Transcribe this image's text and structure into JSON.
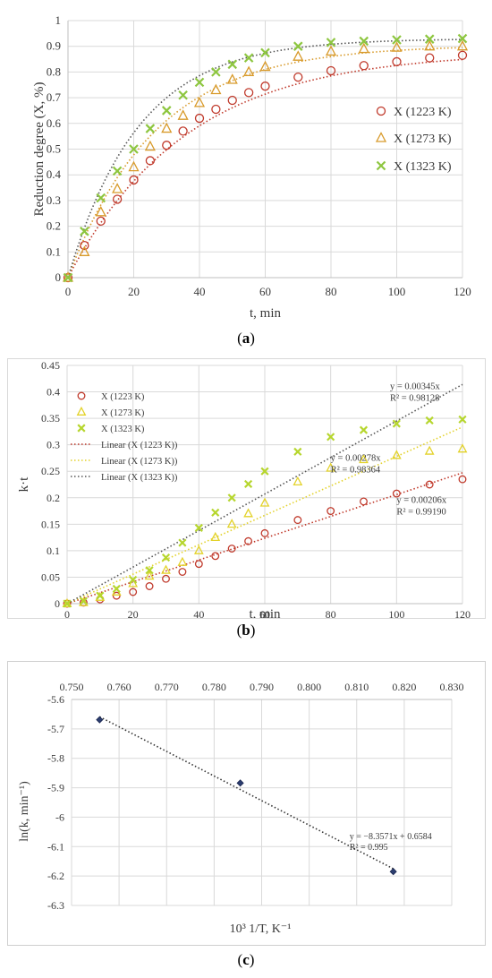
{
  "chart_data": [
    {
      "type": "scatter",
      "panel": "a",
      "title": "",
      "xlabel": "t, min",
      "ylabel": "Reduction degree (X, %)",
      "xlim": [
        0,
        120
      ],
      "ylim": [
        0,
        1
      ],
      "x_ticks": [
        0,
        20,
        40,
        60,
        80,
        100,
        120
      ],
      "y_ticks": [
        0,
        0.1,
        0.2,
        0.3,
        0.4,
        0.5,
        0.6,
        0.7,
        0.8,
        0.9,
        1
      ],
      "x_tick_labels": [
        "0",
        "20",
        "40",
        "60",
        "80",
        "100",
        "120"
      ],
      "y_tick_labels": [
        "0",
        "0.1",
        "0.2",
        "0.3",
        "0.4",
        "0.5",
        "0.6",
        "0.7",
        "0.8",
        "0.9",
        "1"
      ],
      "grid": true,
      "legend_position": "right",
      "series": [
        {
          "name": "X (1223 K)",
          "marker": "circle",
          "color": "#c0392b",
          "x": [
            0,
            5,
            10,
            15,
            20,
            25,
            30,
            35,
            40,
            45,
            50,
            55,
            60,
            70,
            80,
            90,
            100,
            110,
            120
          ],
          "y": [
            0,
            0.125,
            0.22,
            0.305,
            0.38,
            0.455,
            0.515,
            0.57,
            0.62,
            0.655,
            0.69,
            0.72,
            0.745,
            0.78,
            0.805,
            0.825,
            0.84,
            0.855,
            0.865
          ]
        },
        {
          "name": "X (1273 K)",
          "marker": "triangle",
          "color": "#d89a2a",
          "x": [
            0,
            5,
            10,
            15,
            20,
            25,
            30,
            35,
            40,
            45,
            50,
            55,
            60,
            70,
            80,
            90,
            100,
            110,
            120
          ],
          "y": [
            0,
            0.1,
            0.255,
            0.345,
            0.43,
            0.51,
            0.58,
            0.63,
            0.68,
            0.73,
            0.77,
            0.8,
            0.82,
            0.86,
            0.88,
            0.89,
            0.895,
            0.9,
            0.9
          ]
        },
        {
          "name": "X (1323 K)",
          "marker": "x",
          "color": "#8dc63f",
          "x": [
            0,
            5,
            10,
            15,
            20,
            25,
            30,
            35,
            40,
            45,
            50,
            55,
            60,
            70,
            80,
            90,
            100,
            110,
            120
          ],
          "y": [
            0,
            0.18,
            0.31,
            0.415,
            0.5,
            0.58,
            0.65,
            0.71,
            0.76,
            0.8,
            0.83,
            0.855,
            0.875,
            0.9,
            0.915,
            0.92,
            0.925,
            0.928,
            0.93
          ]
        }
      ],
      "fit_curves": [
        {
          "color": "#c0392b",
          "k": 0.0206,
          "xmax": 0.88
        },
        {
          "color": "#d89a2a",
          "k": 0.0278,
          "xmax": 0.905
        },
        {
          "color": "#555555",
          "k": 0.0345,
          "xmax": 0.93
        }
      ],
      "caption": "a"
    },
    {
      "type": "scatter",
      "panel": "b",
      "title": "",
      "xlabel": "t, min",
      "ylabel": "k·t",
      "xlim": [
        0,
        120
      ],
      "ylim": [
        0,
        0.45
      ],
      "x_ticks": [
        0,
        20,
        40,
        60,
        80,
        100,
        120
      ],
      "y_ticks": [
        0,
        0.05,
        0.1,
        0.15,
        0.2,
        0.25,
        0.3,
        0.35,
        0.4,
        0.45
      ],
      "x_tick_labels": [
        "0",
        "20",
        "40",
        "60",
        "80",
        "100",
        "120"
      ],
      "y_tick_labels": [
        "0",
        "0.05",
        "0.1",
        "0.15",
        "0.2",
        "0.25",
        "0.3",
        "0.35",
        "0.4",
        "0.45"
      ],
      "grid": true,
      "legend_position": "top-left",
      "series": [
        {
          "name": "X (1223 K)",
          "marker": "circle",
          "color": "#c0392b",
          "x": [
            0,
            5,
            10,
            15,
            20,
            25,
            30,
            35,
            40,
            45,
            50,
            55,
            60,
            70,
            80,
            90,
            100,
            110,
            120
          ],
          "y": [
            0,
            0.002,
            0.008,
            0.015,
            0.022,
            0.033,
            0.047,
            0.06,
            0.075,
            0.09,
            0.104,
            0.118,
            0.133,
            0.158,
            0.175,
            0.193,
            0.208,
            0.225,
            0.235
          ]
        },
        {
          "name": "X (1273 K)",
          "marker": "triangle",
          "color": "#e3d22a",
          "x": [
            0,
            5,
            10,
            15,
            20,
            25,
            30,
            35,
            40,
            45,
            50,
            55,
            60,
            70,
            80,
            90,
            100,
            110,
            120
          ],
          "y": [
            0,
            0.002,
            0.012,
            0.022,
            0.038,
            0.052,
            0.063,
            0.078,
            0.1,
            0.125,
            0.15,
            0.17,
            0.19,
            0.23,
            0.256,
            0.272,
            0.28,
            0.288,
            0.292
          ]
        },
        {
          "name": "X (1323 K)",
          "marker": "x",
          "color": "#b6d62e",
          "x": [
            0,
            5,
            10,
            15,
            20,
            25,
            30,
            35,
            40,
            45,
            50,
            55,
            60,
            70,
            80,
            90,
            100,
            110,
            120
          ],
          "y": [
            0,
            0.005,
            0.015,
            0.028,
            0.045,
            0.063,
            0.087,
            0.115,
            0.143,
            0.172,
            0.2,
            0.226,
            0.25,
            0.287,
            0.315,
            0.328,
            0.34,
            0.346,
            0.348
          ]
        },
        {
          "name": "Linear (X (1223 K))",
          "type": "line",
          "style": "dotted",
          "color": "#c0392b",
          "slope": 0.00206
        },
        {
          "name": "Linear (X (1273 K))",
          "type": "line",
          "style": "dotted",
          "color": "#e3d22a",
          "slope": 0.00278
        },
        {
          "name": "Linear (X (1323 K))",
          "type": "line",
          "style": "dotted",
          "color": "#555555",
          "slope": 0.00345
        }
      ],
      "annotations": [
        {
          "line1": "y = 0.00345x",
          "line2": "R² = 0.98128",
          "x": 98,
          "y": 0.405
        },
        {
          "line1": "y = 0.00278x",
          "line2": "R² = 0.98364",
          "x": 80,
          "y": 0.27
        },
        {
          "line1": "y = 0.00206x",
          "line2": "R² = 0.99190",
          "x": 100,
          "y": 0.19
        }
      ],
      "caption": "b"
    },
    {
      "type": "scatter",
      "panel": "c",
      "title": "",
      "xlabel": "10³ 1/T, K⁻¹",
      "ylabel": "ln(k, min⁻¹)",
      "xlim": [
        0.75,
        0.83
      ],
      "ylim": [
        -6.3,
        -5.6
      ],
      "x_ticks": [
        0.75,
        0.76,
        0.77,
        0.78,
        0.79,
        0.8,
        0.81,
        0.82,
        0.83
      ],
      "y_ticks": [
        -5.6,
        -5.7,
        -5.8,
        -5.9,
        -6,
        -6.1,
        -6.2,
        -6.3
      ],
      "x_tick_labels": [
        "0.750",
        "0.760",
        "0.770",
        "0.780",
        "0.790",
        "0.800",
        "0.810",
        "0.820",
        "0.830"
      ],
      "y_tick_labels": [
        "-5.6",
        "-5.7",
        "-5.8",
        "-5.9",
        "-6",
        "-6.1",
        "-6.2",
        "-6.3"
      ],
      "x_axis_position": "top",
      "grid": true,
      "series": [
        {
          "marker": "diamond",
          "color": "#2c3e70",
          "x": [
            0.7559,
            0.7855,
            0.8177
          ],
          "y": [
            -5.669,
            -5.884,
            -6.185
          ]
        },
        {
          "type": "line",
          "style": "dotted",
          "color": "#333333",
          "slope": -8.3571,
          "intercept": 0.6584,
          "x_range": [
            0.7559,
            0.8177
          ]
        }
      ],
      "annotations": [
        {
          "line1": "y = −8.3571x + 0.6584",
          "line2": "R² = 0.995",
          "x": 0.8085,
          "y": -6.075
        }
      ],
      "caption": "c"
    }
  ]
}
